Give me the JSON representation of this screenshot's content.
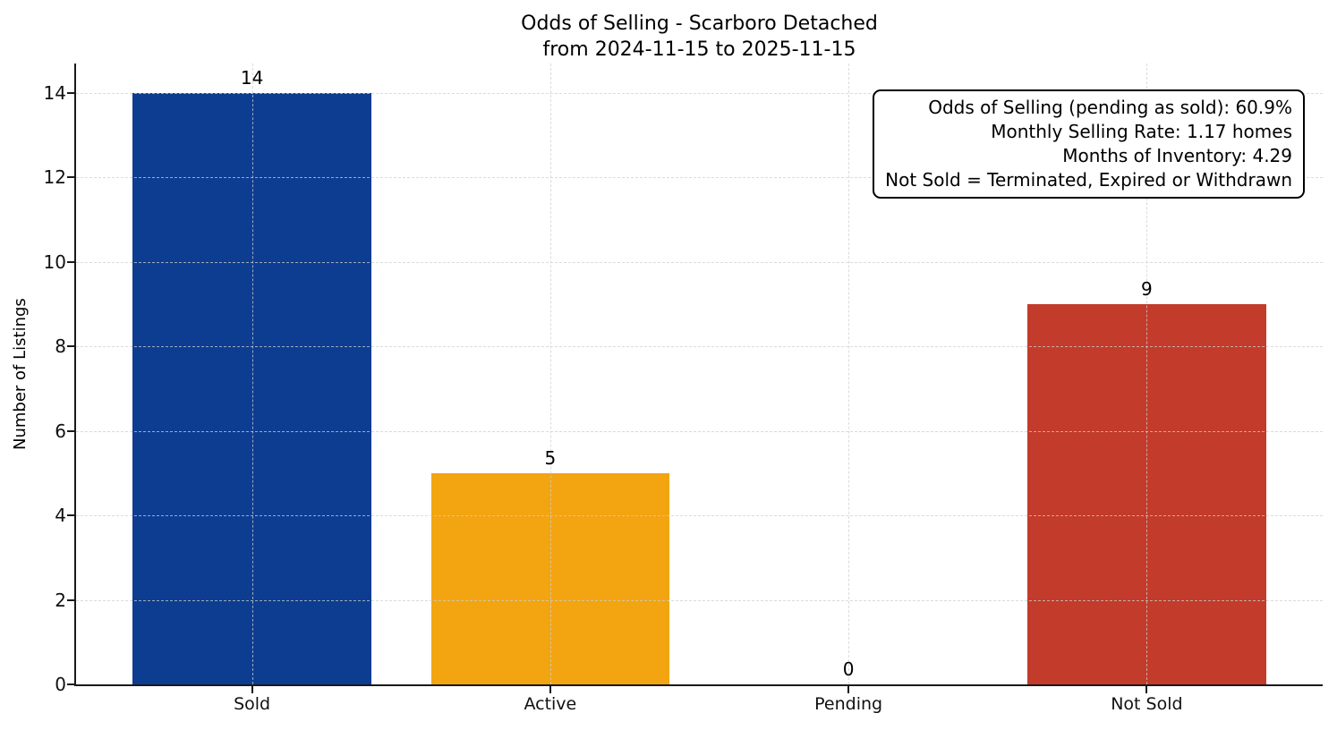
{
  "title": {
    "line1": "Odds of Selling - Scarboro Detached",
    "line2": "from 2024-11-15 to 2025-11-15"
  },
  "annotation": {
    "lines": [
      "Odds of Selling (pending as sold): 60.9%",
      "Monthly Selling Rate: 1.17 homes",
      "Months of Inventory: 4.29",
      "Not Sold = Terminated, Expired or Withdrawn"
    ]
  },
  "chart_data": {
    "type": "bar",
    "title": "Odds of Selling - Scarboro Detached\nfrom 2024-11-15 to 2025-11-15",
    "categories": [
      "Sold",
      "Active",
      "Pending",
      "Not Sold"
    ],
    "values": [
      14,
      5,
      0,
      9
    ],
    "value_labels": [
      "14",
      "5",
      "0",
      "9"
    ],
    "bar_colors": [
      "#0d3d91",
      "#f2a411",
      null,
      "#c23b2b"
    ],
    "xlabel": "",
    "ylabel": "Number of Listings",
    "ylim": [
      0,
      14.7
    ],
    "yticks": [
      0,
      2,
      4,
      6,
      8,
      10,
      12,
      14
    ],
    "grid": true,
    "grid_style": "dashed",
    "legend": null,
    "annotations": [
      "Odds of Selling (pending as sold): 60.9%",
      "Monthly Selling Rate: 1.17 homes",
      "Months of Inventory: 4.29",
      "Not Sold = Terminated, Expired or Withdrawn"
    ],
    "colors": {
      "sold_bar": "#0d3d91",
      "active_bar": "#f2a411",
      "not_sold_bar": "#c23b2b",
      "grid": "#cfcfcf",
      "spine": "#1a1a1a",
      "text": "#000000"
    }
  }
}
